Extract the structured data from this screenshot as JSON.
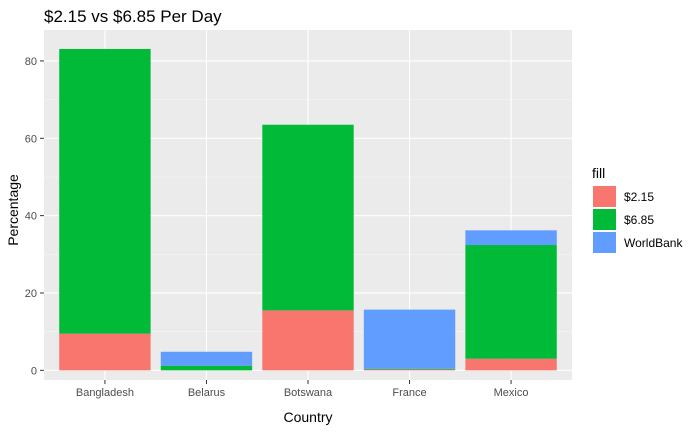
{
  "chart_data": {
    "type": "bar",
    "stacked": true,
    "title": "$2.15 vs $6.85 Per Day",
    "xlabel": "Country",
    "ylabel": "Percentage",
    "categories": [
      "Bangladesh",
      "Belarus",
      "Botswana",
      "France",
      "Mexico"
    ],
    "series": [
      {
        "name": "$2.15",
        "color": "#F8766D",
        "values": [
          9.5,
          0.0,
          15.5,
          0.2,
          3.0
        ]
      },
      {
        "name": "$6.85",
        "color": "#00BA38",
        "values": [
          73.6,
          1.2,
          48.0,
          0.2,
          29.4
        ]
      },
      {
        "name": "WorldBank",
        "color": "#619CFF",
        "values": [
          0.0,
          3.6,
          0.0,
          15.3,
          3.8
        ]
      }
    ],
    "ylim": [
      -2.5,
      88
    ],
    "yticks": [
      0,
      20,
      40,
      60,
      80
    ],
    "grid": true,
    "panel_background": "#EBEBEB",
    "legend": {
      "title": "fill",
      "position": "right"
    }
  }
}
